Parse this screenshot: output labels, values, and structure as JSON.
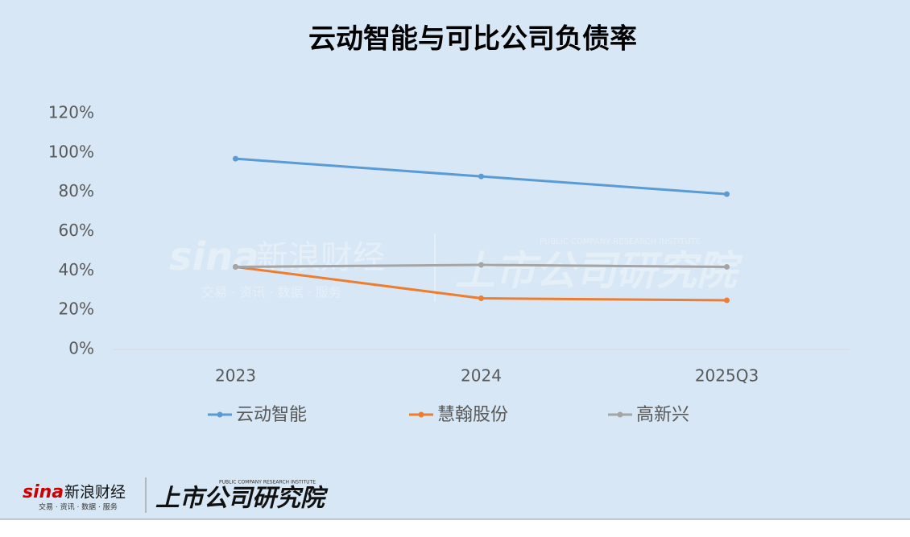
{
  "chart_data": {
    "type": "line",
    "title": "云动智能与可比公司负债率",
    "categories": [
      "2023",
      "2024",
      "2025Q3"
    ],
    "series": [
      {
        "name": "云动智能",
        "color": "#5b9bd5",
        "values": [
          97,
          88,
          79
        ]
      },
      {
        "name": "慧翰股份",
        "color": "#ed7d31",
        "values": [
          42,
          26,
          25
        ]
      },
      {
        "name": "高新兴",
        "color": "#a5a5a5",
        "values": [
          42,
          43,
          42
        ]
      }
    ],
    "ylim": [
      0,
      120
    ],
    "yticks": [
      {
        "value": 0,
        "label": "0%"
      },
      {
        "value": 20,
        "label": "20%"
      },
      {
        "value": 40,
        "label": "40%"
      },
      {
        "value": 60,
        "label": "60%"
      },
      {
        "value": 80,
        "label": "80%"
      },
      {
        "value": 100,
        "label": "100%"
      },
      {
        "value": 120,
        "label": "120%"
      }
    ],
    "grid": false,
    "legend": "bottom"
  },
  "footer": {
    "logo": "sina",
    "brand": "新浪财经",
    "slogan": "交易 · 资讯 · 数据 · 服务",
    "institute": "上市公司研究院",
    "institute_en": "PUBLIC COMPANY RESEARCH INSTITUTE"
  }
}
